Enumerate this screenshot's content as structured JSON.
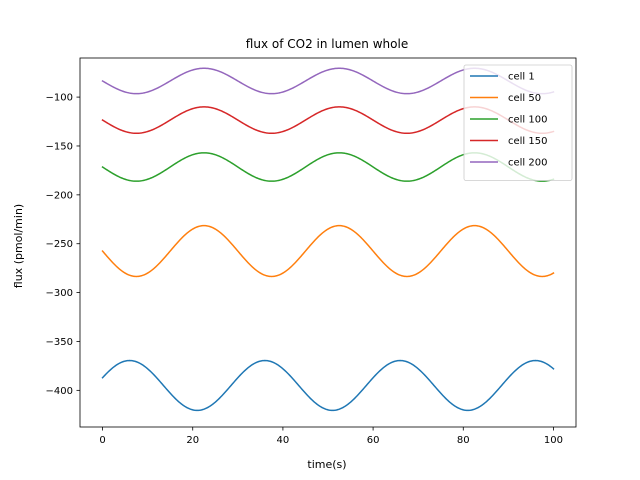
{
  "chart_data": {
    "type": "line",
    "title": "flux of CO2 in lumen whole",
    "xlabel": "time(s)",
    "ylabel": "flux (pmol/min)",
    "xlim": [
      -5,
      105
    ],
    "ylim": [
      -437.5,
      -60
    ],
    "xticks": [
      0,
      20,
      40,
      60,
      80,
      100
    ],
    "yticks": [
      -400,
      -350,
      -300,
      -250,
      -200,
      -150,
      -100
    ],
    "legend_position": "upper right",
    "series": [
      {
        "name": "cell 1",
        "color": "#1f77b4",
        "mean": -395,
        "amplitude": 25.5,
        "period": 30,
        "phase_max_at": 36,
        "x_range": [
          0,
          100
        ]
      },
      {
        "name": "cell 50",
        "color": "#ff7f0e",
        "mean": -257.5,
        "amplitude": 26,
        "period": 30,
        "phase_max_at": 22.5,
        "x_range": [
          0,
          100
        ]
      },
      {
        "name": "cell 100",
        "color": "#2ca02c",
        "mean": -171.5,
        "amplitude": 14.5,
        "period": 30,
        "phase_max_at": 22.5,
        "x_range": [
          0,
          100
        ]
      },
      {
        "name": "cell 150",
        "color": "#d62728",
        "mean": -123.5,
        "amplitude": 13.5,
        "period": 30,
        "phase_max_at": 22.5,
        "x_range": [
          0,
          100
        ]
      },
      {
        "name": "cell 200",
        "color": "#9467bd",
        "mean": -83.5,
        "amplitude": 13,
        "period": 30,
        "phase_max_at": 22.5,
        "x_range": [
          0,
          100
        ]
      }
    ]
  }
}
